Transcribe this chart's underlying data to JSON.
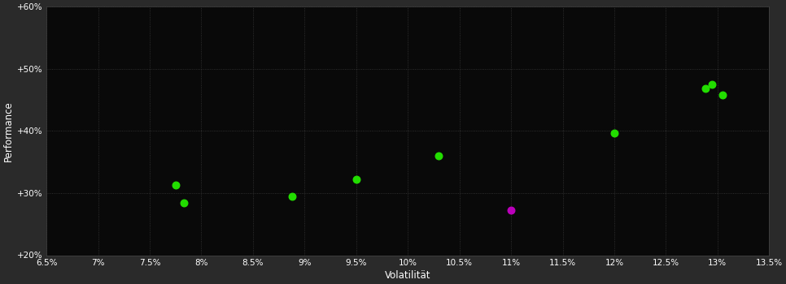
{
  "background_color": "#2a2a2a",
  "plot_bg_color": "#090909",
  "grid_color": "#3a3a3a",
  "grid_style": ":",
  "xlabel": "Volatilität",
  "ylabel": "Performance",
  "xlim": [
    0.065,
    0.135
  ],
  "ylim": [
    0.2,
    0.6
  ],
  "xticks": [
    0.065,
    0.07,
    0.075,
    0.08,
    0.085,
    0.09,
    0.095,
    0.1,
    0.105,
    0.11,
    0.115,
    0.12,
    0.125,
    0.13,
    0.135
  ],
  "yticks": [
    0.2,
    0.3,
    0.4,
    0.5,
    0.6
  ],
  "xtick_labels": [
    "6.5%",
    "7%",
    "7.5%",
    "8%",
    "8.5%",
    "9%",
    "9.5%",
    "10%",
    "10.5%",
    "11%",
    "11.5%",
    "12%",
    "12.5%",
    "13%",
    "13.5%"
  ],
  "ytick_labels": [
    "+20%",
    "+30%",
    "+40%",
    "+50%",
    "+60%"
  ],
  "points_green": [
    [
      0.0775,
      0.313
    ],
    [
      0.0783,
      0.284
    ],
    [
      0.0888,
      0.295
    ],
    [
      0.095,
      0.322
    ],
    [
      0.103,
      0.36
    ],
    [
      0.12,
      0.396
    ],
    [
      0.1288,
      0.468
    ],
    [
      0.1295,
      0.475
    ],
    [
      0.1305,
      0.458
    ]
  ],
  "points_magenta": [
    [
      0.11,
      0.272
    ]
  ],
  "green_color": "#22dd00",
  "magenta_color": "#bb00bb",
  "marker_size": 38,
  "tick_label_color": "#ffffff",
  "axis_label_color": "#ffffff",
  "tick_label_fontsize": 7.5,
  "axis_label_fontsize": 8.5
}
